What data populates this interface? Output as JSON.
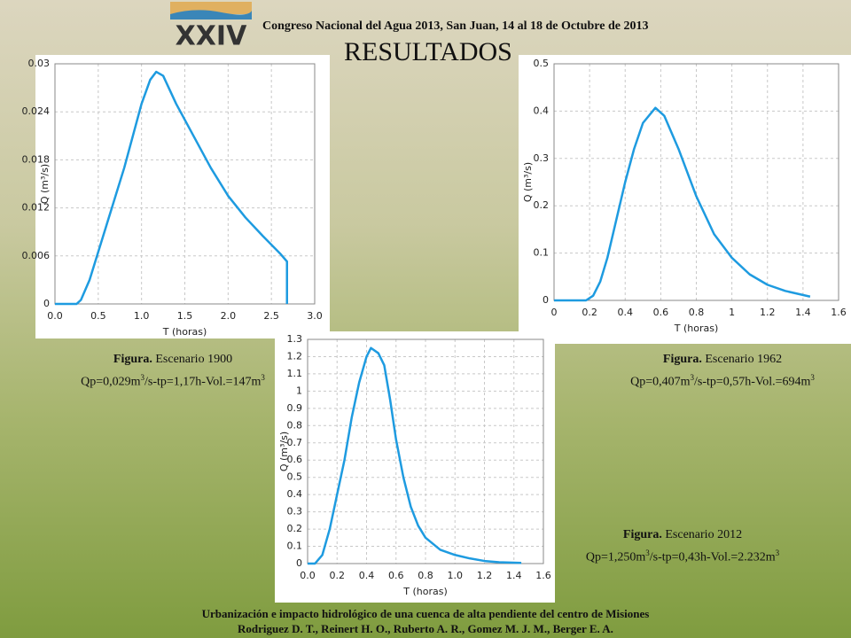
{
  "header": {
    "logo_text": "XXIV",
    "congress": "Congreso Nacional del Agua 2013, San Juan, 14 al 18 de Octubre de 2013",
    "title": "RESULTADOS"
  },
  "chart_data": [
    {
      "type": "line",
      "xlabel": "T (horas)",
      "ylabel": "Q (m³/s)",
      "xlim": [
        0,
        3
      ],
      "ylim": [
        0,
        0.03
      ],
      "xticks": [
        {
          "value": 0,
          "label": "0.0"
        },
        0.5,
        {
          "value": 1,
          "label": "1.0"
        },
        1.5,
        {
          "value": 2,
          "label": "2.0"
        },
        2.5,
        {
          "value": 3,
          "label": "3.0"
        }
      ],
      "yticks": [
        0,
        0.006,
        0.012,
        0.018,
        0.024,
        0.03
      ],
      "grid": true,
      "series": [
        {
          "name": "Escenario 1900",
          "color": "#1e9be0",
          "x": [
            0,
            0.25,
            0.3,
            0.4,
            0.5,
            0.6,
            0.7,
            0.8,
            0.9,
            1.0,
            1.1,
            1.17,
            1.25,
            1.4,
            1.6,
            1.8,
            2.0,
            2.2,
            2.4,
            2.6,
            2.68,
            2.68
          ],
          "values": [
            0,
            0,
            0.0005,
            0.003,
            0.0065,
            0.01,
            0.0135,
            0.017,
            0.021,
            0.025,
            0.028,
            0.029,
            0.0285,
            0.025,
            0.021,
            0.017,
            0.0135,
            0.0108,
            0.0085,
            0.0063,
            0.0053,
            0
          ]
        }
      ]
    },
    {
      "type": "line",
      "xlabel": "T (horas)",
      "ylabel": "Q (m³/s)",
      "xlim": [
        0,
        1.6
      ],
      "ylim": [
        0,
        0.5
      ],
      "xticks": [
        0,
        0.2,
        0.4,
        0.6,
        0.8,
        1,
        1.2,
        1.4,
        1.6
      ],
      "yticks": [
        0,
        0.1,
        0.2,
        0.3,
        0.4,
        0.5
      ],
      "grid": true,
      "series": [
        {
          "name": "Escenario 1962",
          "color": "#1e9be0",
          "x": [
            0,
            0.18,
            0.22,
            0.26,
            0.3,
            0.35,
            0.4,
            0.45,
            0.5,
            0.57,
            0.62,
            0.7,
            0.8,
            0.9,
            1.0,
            1.1,
            1.2,
            1.3,
            1.44
          ],
          "values": [
            0,
            0,
            0.01,
            0.04,
            0.09,
            0.17,
            0.25,
            0.32,
            0.375,
            0.407,
            0.39,
            0.32,
            0.22,
            0.14,
            0.09,
            0.055,
            0.033,
            0.02,
            0.008
          ]
        }
      ]
    },
    {
      "type": "line",
      "xlabel": "T (horas)",
      "ylabel": "Q (m³/s)",
      "xlim": [
        0,
        1.6
      ],
      "ylim": [
        0,
        1.3
      ],
      "xticks": [
        {
          "value": 0,
          "label": "0.0"
        },
        0.2,
        0.4,
        0.6,
        0.8,
        {
          "value": 1,
          "label": "1.0"
        },
        1.2,
        1.4,
        1.6
      ],
      "yticks": [
        0,
        0.1,
        0.2,
        0.3,
        0.4,
        0.5,
        0.6,
        0.7,
        0.8,
        0.9,
        1,
        1.1,
        1.2,
        1.3
      ],
      "grid": true,
      "series": [
        {
          "name": "Escenario 2012",
          "color": "#1e9be0",
          "x": [
            0,
            0.05,
            0.1,
            0.15,
            0.2,
            0.25,
            0.3,
            0.35,
            0.4,
            0.43,
            0.48,
            0.52,
            0.56,
            0.6,
            0.65,
            0.7,
            0.75,
            0.8,
            0.9,
            1.0,
            1.1,
            1.2,
            1.3,
            1.45
          ],
          "values": [
            0,
            0,
            0.05,
            0.2,
            0.4,
            0.6,
            0.85,
            1.05,
            1.2,
            1.25,
            1.22,
            1.15,
            0.95,
            0.72,
            0.5,
            0.33,
            0.22,
            0.15,
            0.08,
            0.05,
            0.03,
            0.015,
            0.008,
            0.004
          ]
        }
      ]
    }
  ],
  "captions": [
    {
      "label": "Figura.",
      "parts": [
        "Qp=0,029m",
        "3",
        "/s-tp=1,17h-Vol.=147m",
        "3"
      ]
    },
    {
      "label": "Figura.",
      "parts": [
        "Qp=0,407m",
        "3",
        "/s-tp=0,57h-Vol.=694m",
        "3"
      ]
    },
    {
      "label": "Figura.",
      "parts": [
        "Qp=1,250m",
        "3",
        "/s-tp=0,43h-Vol.=2.232m",
        "3"
      ]
    }
  ],
  "footer": [
    "Urbanización e impacto hidrológico de una cuenca de alta pendiente del centro de Misiones",
    "Rodriguez D. T., Reinert H. O., Ruberto A. R., Gomez M. J. M.,  Berger E. A."
  ]
}
